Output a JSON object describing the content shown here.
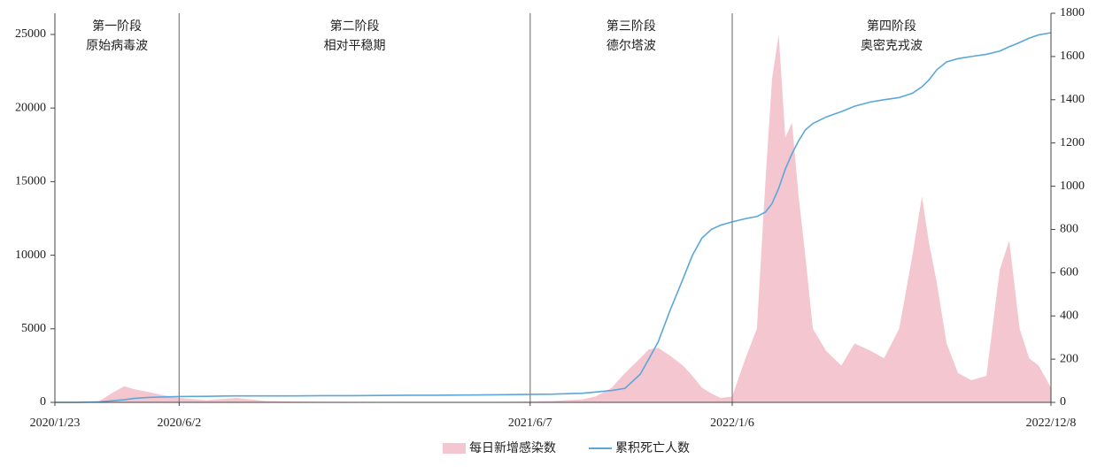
{
  "chart_data": {
    "type": "area-line",
    "x": [
      "2020/1/23",
      "2020/2/15",
      "2020/3/10",
      "2020/3/25",
      "2020/4/5",
      "2020/4/15",
      "2020/5/1",
      "2020/5/15",
      "2020/6/2",
      "2020/7/1",
      "2020/8/1",
      "2020/9/1",
      "2020/10/1",
      "2020/11/1",
      "2020/12/1",
      "2021/1/1",
      "2021/2/1",
      "2021/3/1",
      "2021/4/1",
      "2021/5/1",
      "2021/6/7",
      "2021/7/1",
      "2021/7/15",
      "2021/8/1",
      "2021/8/15",
      "2021/9/1",
      "2021/9/15",
      "2021/10/1",
      "2021/10/10",
      "2021/10/20",
      "2021/11/1",
      "2021/11/15",
      "2021/11/25",
      "2021/12/5",
      "2021/12/15",
      "2021/12/25",
      "2022/1/6",
      "2022/1/20",
      "2022/2/1",
      "2022/2/10",
      "2022/2/17",
      "2022/2/24",
      "2022/3/3",
      "2022/3/10",
      "2022/3/17",
      "2022/3/24",
      "2022/4/1",
      "2022/4/15",
      "2022/5/1",
      "2022/5/15",
      "2022/6/1",
      "2022/6/15",
      "2022/7/1",
      "2022/7/15",
      "2022/7/25",
      "2022/8/1",
      "2022/8/10",
      "2022/8/20",
      "2022/9/1",
      "2022/9/15",
      "2022/10/1",
      "2022/10/15",
      "2022/10/25",
      "2022/11/5",
      "2022/11/15",
      "2022/11/25",
      "2022/12/8"
    ],
    "series": [
      {
        "name": "每日新增感染数",
        "color": "#f4c6cf",
        "kind": "area",
        "values": [
          0,
          0,
          100,
          700,
          1100,
          900,
          700,
          500,
          300,
          150,
          300,
          100,
          50,
          40,
          30,
          30,
          20,
          20,
          20,
          30,
          60,
          100,
          150,
          200,
          400,
          1000,
          2000,
          3000,
          3600,
          3700,
          3200,
          2500,
          1800,
          1000,
          600,
          300,
          400,
          3000,
          5000,
          15000,
          22000,
          25000,
          18000,
          19000,
          14000,
          10000,
          5000,
          3500,
          2500,
          4000,
          3500,
          3000,
          5000,
          10000,
          14000,
          11000,
          8000,
          4000,
          2000,
          1500,
          1800,
          9000,
          11000,
          5000,
          3000,
          2500,
          1000
        ]
      },
      {
        "name": "累积死亡人数",
        "color": "#5ba7da",
        "kind": "line",
        "axis": "y2",
        "values": [
          0,
          0,
          2,
          8,
          12,
          18,
          23,
          25,
          27,
          28,
          30,
          30,
          30,
          31,
          31,
          32,
          33,
          33,
          34,
          35,
          37,
          38,
          40,
          42,
          48,
          55,
          65,
          130,
          200,
          280,
          420,
          570,
          680,
          760,
          800,
          820,
          835,
          850,
          860,
          880,
          920,
          990,
          1080,
          1150,
          1210,
          1260,
          1290,
          1320,
          1345,
          1370,
          1390,
          1400,
          1410,
          1430,
          1460,
          1490,
          1540,
          1575,
          1590,
          1600,
          1610,
          1625,
          1645,
          1665,
          1685,
          1700,
          1710
        ]
      }
    ],
    "xlim": [
      "2020/1/23",
      "2022/12/8"
    ],
    "xticks": [
      "2020/1/23",
      "2020/6/2",
      "2021/6/7",
      "2022/1/6",
      "2022/12/8"
    ],
    "ylim": [
      0,
      26440
    ],
    "yticks": [
      0,
      5000,
      10000,
      15000,
      20000,
      25000
    ],
    "y2lim": [
      0,
      1800
    ],
    "y2ticks": [
      0,
      200,
      400,
      600,
      800,
      1000,
      1200,
      1400,
      1600,
      1800
    ],
    "phases": [
      {
        "title": "第一阶段",
        "subtitle": "原始病毒波",
        "start": "2020/1/23",
        "end": "2020/6/2"
      },
      {
        "title": "第二阶段",
        "subtitle": "相对平稳期",
        "start": "2020/6/2",
        "end": "2021/6/7"
      },
      {
        "title": "第三阶段",
        "subtitle": "德尔塔波",
        "start": "2021/6/7",
        "end": "2022/1/6"
      },
      {
        "title": "第四阶段",
        "subtitle": "奥密克戎波",
        "start": "2022/1/6",
        "end": "2022/12/8"
      }
    ],
    "legend": "bottom"
  }
}
